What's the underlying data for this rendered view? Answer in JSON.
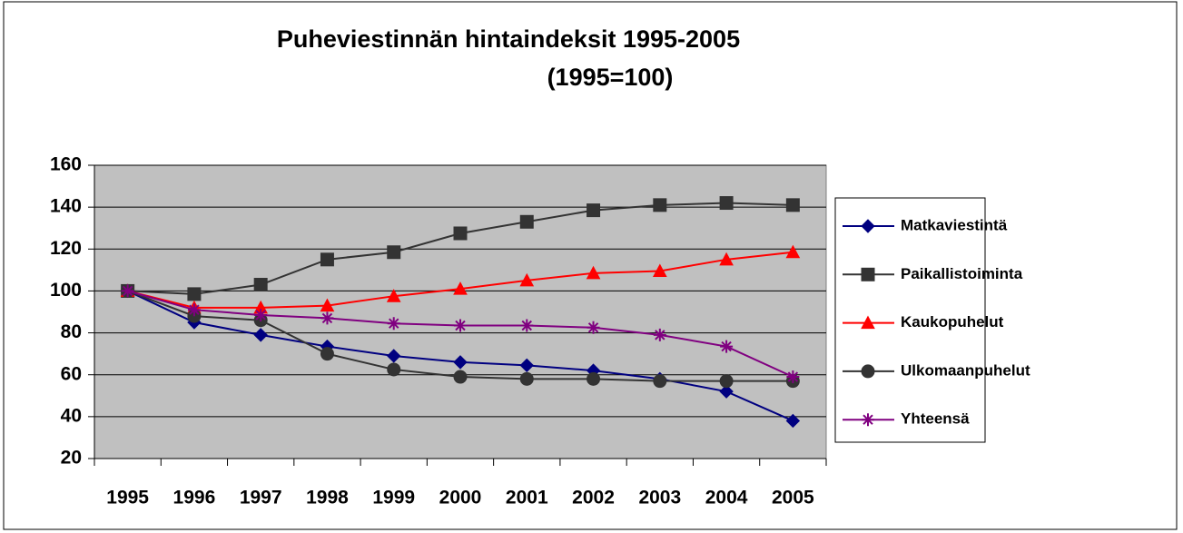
{
  "chart_data": {
    "type": "line",
    "title": [
      "Puheviestinnän hintaindeksit 1995-2005",
      "(1995=100)"
    ],
    "categories": [
      "1995",
      "1996",
      "1997",
      "1998",
      "1999",
      "2000",
      "2001",
      "2002",
      "2003",
      "2004",
      "2005"
    ],
    "series": [
      {
        "name": "Matkaviestintä",
        "color": "#000080",
        "marker": "diamond",
        "values": [
          100,
          85,
          79,
          73.5,
          69,
          66,
          64.5,
          62,
          58,
          52,
          38
        ]
      },
      {
        "name": "Paikallistoiminta",
        "color": "#333333",
        "marker": "square",
        "values": [
          100,
          98.5,
          103,
          115,
          118.5,
          127.5,
          133,
          138.5,
          141,
          142,
          141
        ]
      },
      {
        "name": "Kaukopuhelut",
        "color": "#ff0000",
        "marker": "triangle",
        "values": [
          100,
          92,
          92,
          93,
          97.5,
          101,
          105,
          108.5,
          109.5,
          115,
          118.5
        ]
      },
      {
        "name": "Ulkomaanpuhelut",
        "color": "#333333",
        "marker": "circle",
        "values": [
          100,
          88,
          86,
          70,
          62.5,
          59,
          58,
          58,
          57,
          57,
          57
        ]
      },
      {
        "name": "Yhteensä",
        "color": "#800080",
        "marker": "star",
        "values": [
          100,
          91,
          88.5,
          87,
          84.5,
          83.5,
          83.5,
          82.5,
          79,
          73.5,
          59
        ]
      }
    ],
    "ylim": [
      20,
      160
    ],
    "yticks": [
      20,
      40,
      60,
      80,
      100,
      120,
      140,
      160
    ],
    "grid": true,
    "legend": "right",
    "plot_background": "#c0c0c0"
  }
}
